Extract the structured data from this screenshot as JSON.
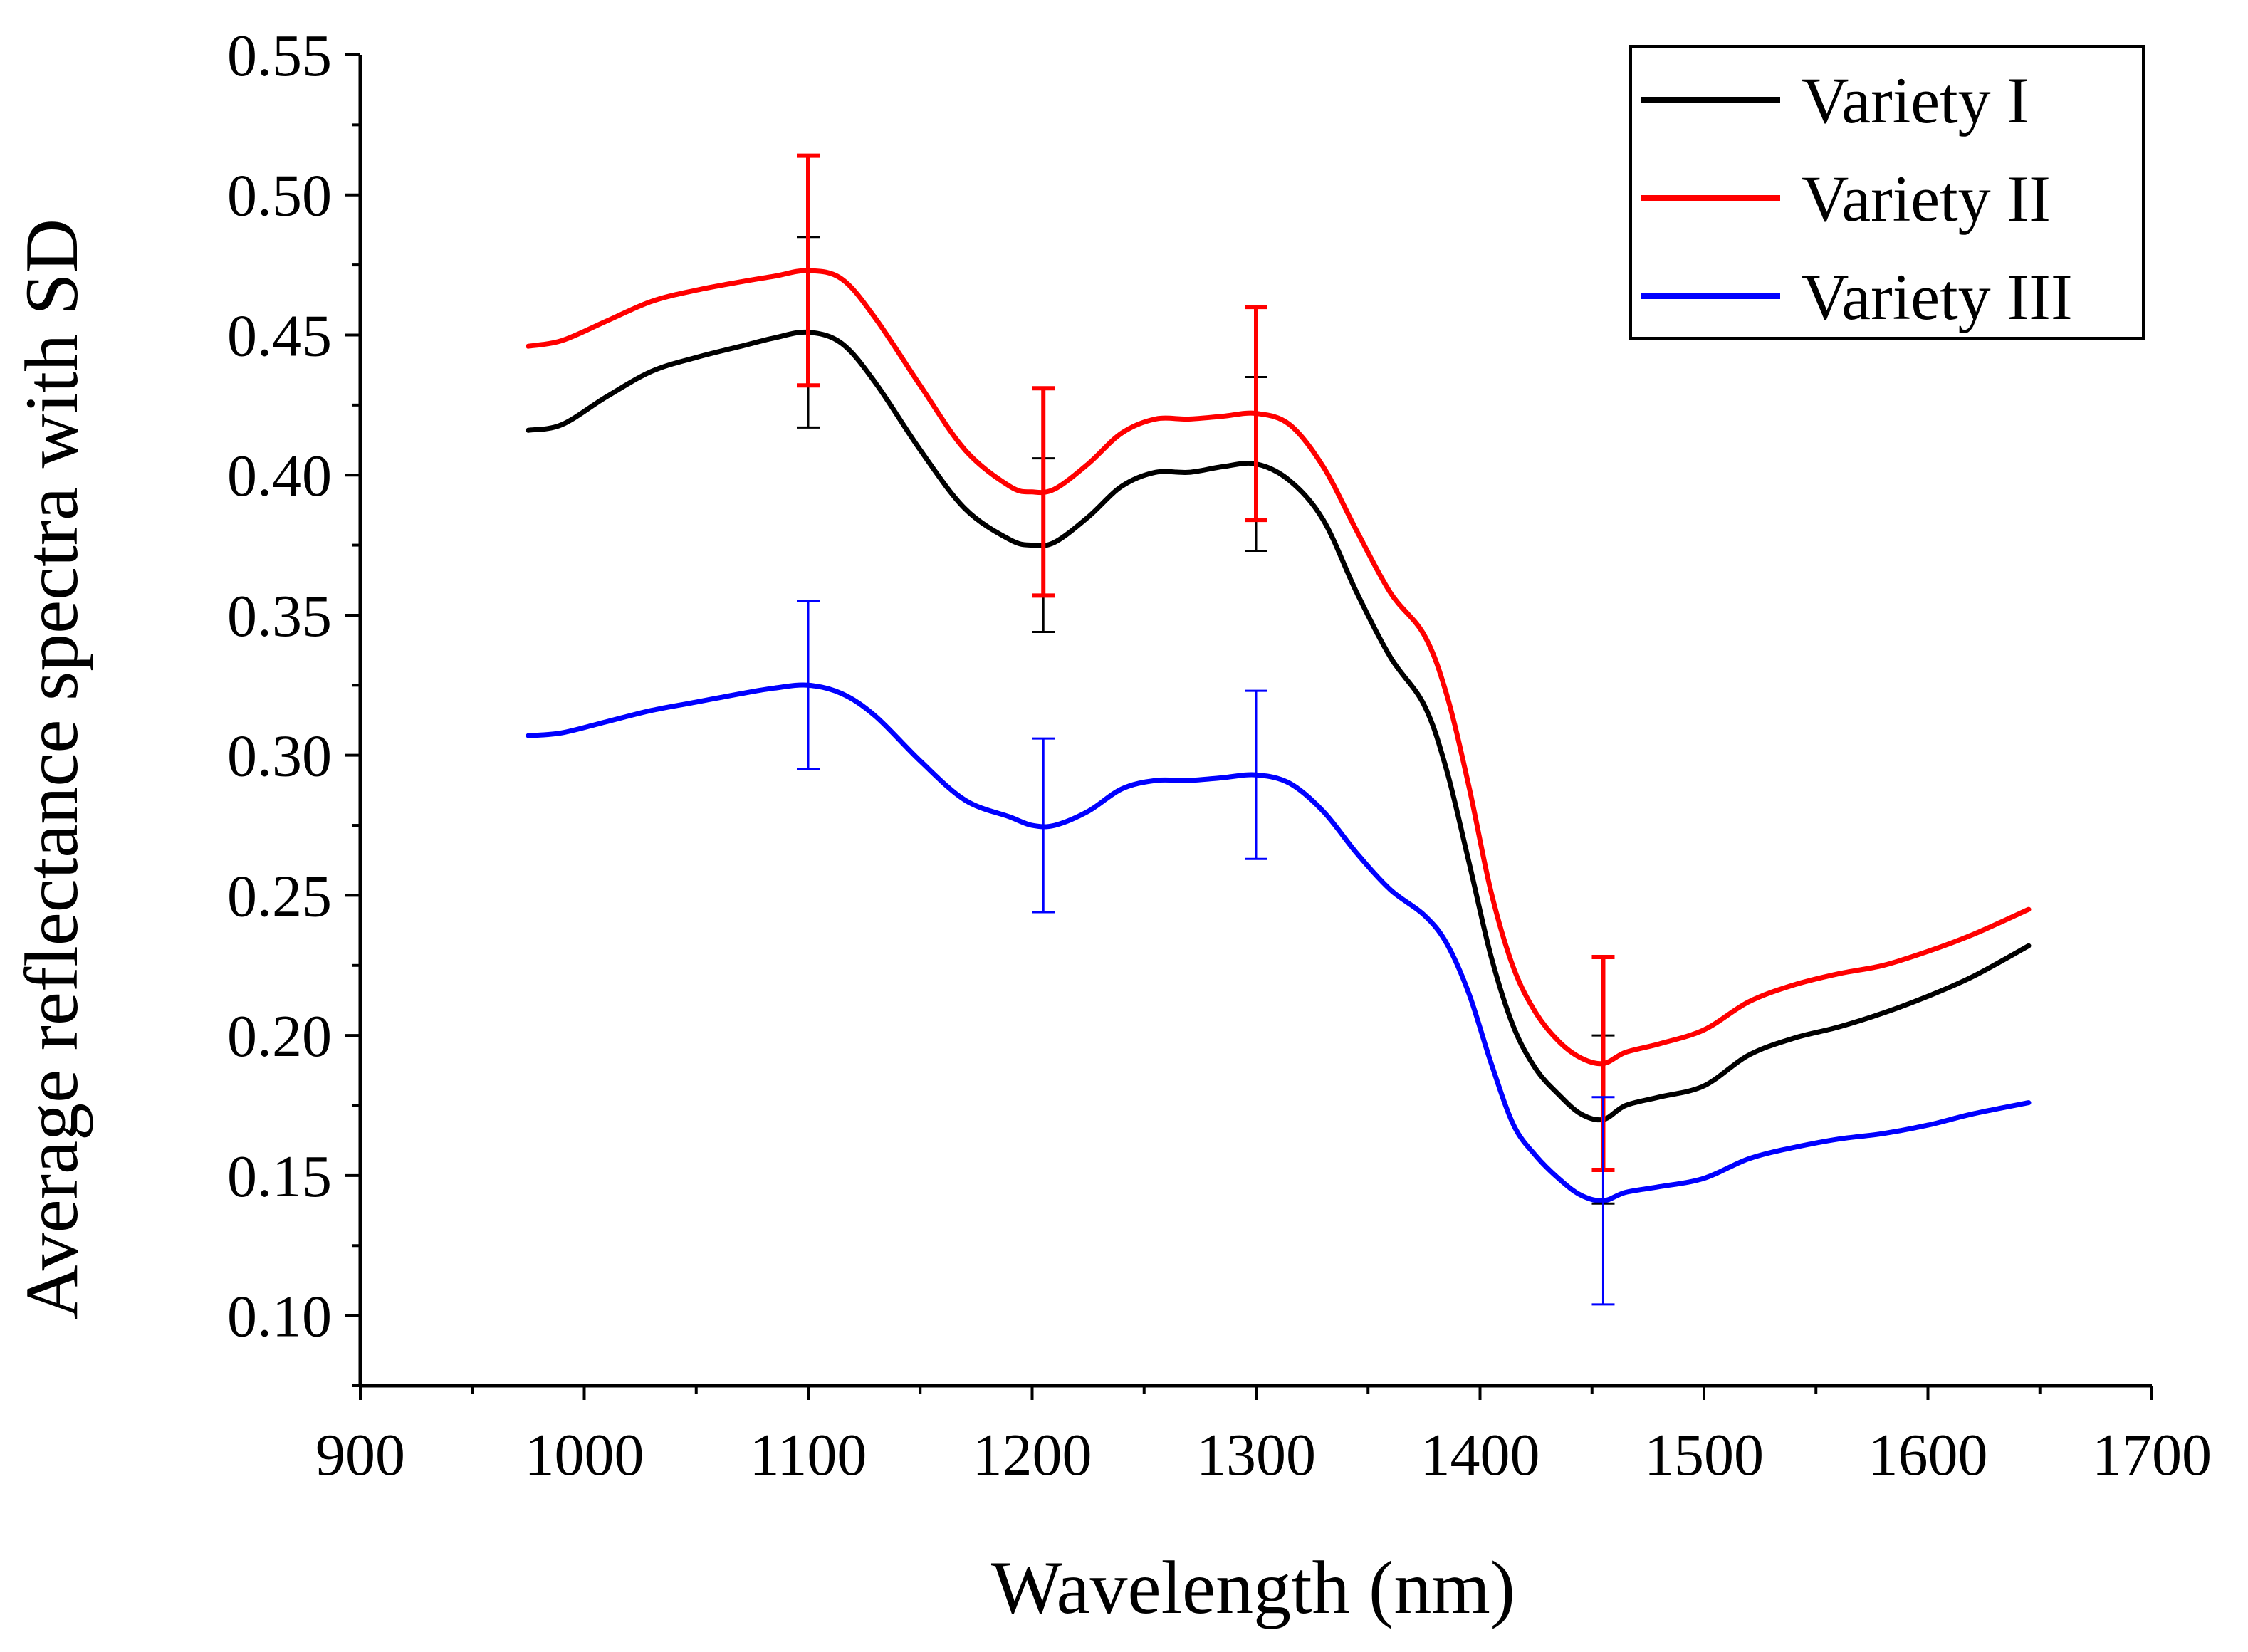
{
  "chart_data": {
    "type": "line",
    "xlabel": "Wavelength (nm)",
    "ylabel": "Average reflectance spectra with SD",
    "xlim": [
      900,
      1700
    ],
    "ylim": [
      0.075,
      0.55
    ],
    "xticks": [
      900,
      1000,
      1100,
      1200,
      1300,
      1400,
      1500,
      1600,
      1700
    ],
    "xtick_labels": [
      "900",
      "1000",
      "1100",
      "1200",
      "1300",
      "1400",
      "1500",
      "1600",
      "1700"
    ],
    "yticks": [
      0.1,
      0.15,
      0.2,
      0.25,
      0.3,
      0.35,
      0.4,
      0.45,
      0.5,
      0.55
    ],
    "ytick_labels": [
      "0.10",
      "0.15",
      "0.20",
      "0.25",
      "0.30",
      "0.35",
      "0.40",
      "0.45",
      "0.50",
      "0.55"
    ],
    "legend_position": "top-right",
    "grid": false,
    "series": [
      {
        "name": "Variety I",
        "color": "#000000",
        "x": [
          975,
          990,
          1010,
          1030,
          1050,
          1070,
          1085,
          1100,
          1115,
          1130,
          1150,
          1170,
          1190,
          1200,
          1210,
          1225,
          1240,
          1255,
          1270,
          1285,
          1300,
          1315,
          1330,
          1345,
          1360,
          1375,
          1385,
          1395,
          1405,
          1415,
          1425,
          1435,
          1445,
          1455,
          1465,
          1480,
          1500,
          1520,
          1540,
          1560,
          1580,
          1600,
          1620,
          1645
        ],
        "values": [
          0.416,
          0.418,
          0.428,
          0.437,
          0.442,
          0.446,
          0.449,
          0.451,
          0.447,
          0.433,
          0.409,
          0.388,
          0.377,
          0.375,
          0.376,
          0.385,
          0.396,
          0.401,
          0.401,
          0.403,
          0.404,
          0.398,
          0.384,
          0.358,
          0.335,
          0.318,
          0.295,
          0.262,
          0.228,
          0.203,
          0.188,
          0.179,
          0.172,
          0.17,
          0.175,
          0.178,
          0.182,
          0.193,
          0.199,
          0.203,
          0.208,
          0.214,
          0.221,
          0.232
        ],
        "error_x": [
          1100,
          1205,
          1300,
          1455
        ],
        "error_y": [
          0.451,
          0.375,
          0.404,
          0.17
        ],
        "error_sd": [
          0.034,
          0.031,
          0.031,
          0.03
        ]
      },
      {
        "name": "Variety II",
        "color": "#ff0000",
        "x": [
          975,
          990,
          1010,
          1030,
          1050,
          1070,
          1085,
          1100,
          1115,
          1130,
          1150,
          1170,
          1190,
          1200,
          1210,
          1225,
          1240,
          1255,
          1270,
          1285,
          1300,
          1315,
          1330,
          1345,
          1360,
          1375,
          1385,
          1395,
          1405,
          1415,
          1425,
          1435,
          1445,
          1455,
          1465,
          1480,
          1500,
          1520,
          1540,
          1560,
          1580,
          1600,
          1620,
          1645
        ],
        "values": [
          0.446,
          0.448,
          0.455,
          0.462,
          0.466,
          0.469,
          0.471,
          0.473,
          0.47,
          0.456,
          0.432,
          0.409,
          0.396,
          0.394,
          0.395,
          0.404,
          0.415,
          0.42,
          0.42,
          0.421,
          0.422,
          0.418,
          0.403,
          0.38,
          0.358,
          0.343,
          0.322,
          0.289,
          0.251,
          0.224,
          0.208,
          0.198,
          0.192,
          0.19,
          0.194,
          0.197,
          0.202,
          0.212,
          0.218,
          0.222,
          0.225,
          0.23,
          0.236,
          0.245
        ],
        "error_x": [
          1100,
          1205,
          1300,
          1455
        ],
        "error_y": [
          0.473,
          0.394,
          0.422,
          0.19
        ],
        "error_sd": [
          0.041,
          0.037,
          0.038,
          0.038
        ]
      },
      {
        "name": "Variety III",
        "color": "#0000ff",
        "x": [
          975,
          990,
          1010,
          1030,
          1050,
          1070,
          1085,
          1100,
          1115,
          1130,
          1150,
          1170,
          1190,
          1200,
          1210,
          1225,
          1240,
          1255,
          1270,
          1285,
          1300,
          1315,
          1330,
          1345,
          1360,
          1375,
          1385,
          1395,
          1405,
          1415,
          1425,
          1435,
          1445,
          1455,
          1465,
          1480,
          1500,
          1520,
          1540,
          1560,
          1580,
          1600,
          1620,
          1645
        ],
        "values": [
          0.307,
          0.308,
          0.312,
          0.316,
          0.319,
          0.322,
          0.324,
          0.325,
          0.322,
          0.314,
          0.298,
          0.284,
          0.278,
          0.275,
          0.275,
          0.28,
          0.288,
          0.291,
          0.291,
          0.292,
          0.293,
          0.29,
          0.28,
          0.265,
          0.252,
          0.243,
          0.233,
          0.215,
          0.19,
          0.168,
          0.157,
          0.149,
          0.143,
          0.141,
          0.144,
          0.146,
          0.149,
          0.156,
          0.16,
          0.163,
          0.165,
          0.168,
          0.172,
          0.176
        ],
        "error_x": [
          1100,
          1205,
          1300,
          1455
        ],
        "error_y": [
          0.325,
          0.275,
          0.293,
          0.141
        ],
        "error_sd": [
          0.03,
          0.031,
          0.03,
          0.037
        ]
      }
    ]
  }
}
